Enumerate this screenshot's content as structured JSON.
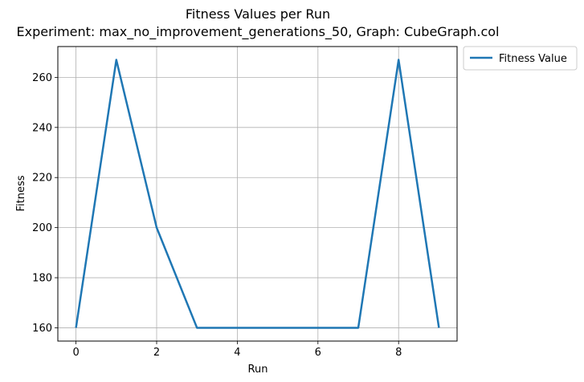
{
  "chart_data": {
    "type": "line",
    "title": "Fitness Values per Run",
    "subtitle": "Experiment: max_no_improvement_generations_50, Graph: CubeGraph.col",
    "xlabel": "Run",
    "ylabel": "Fitness",
    "x": [
      0,
      1,
      2,
      3,
      4,
      5,
      6,
      7,
      8,
      9
    ],
    "series": [
      {
        "name": "Fitness Value",
        "color": "#1f77b4",
        "values": [
          160,
          267,
          200,
          160,
          160,
          160,
          160,
          160,
          267,
          160
        ]
      }
    ],
    "xlim": [
      -0.45,
      9.45
    ],
    "ylim": [
      154.7,
      272.3
    ],
    "xticks": [
      0,
      2,
      4,
      6,
      8
    ],
    "yticks": [
      160,
      180,
      200,
      220,
      240,
      260
    ],
    "grid": true,
    "legend_position": "outside-top-right"
  }
}
